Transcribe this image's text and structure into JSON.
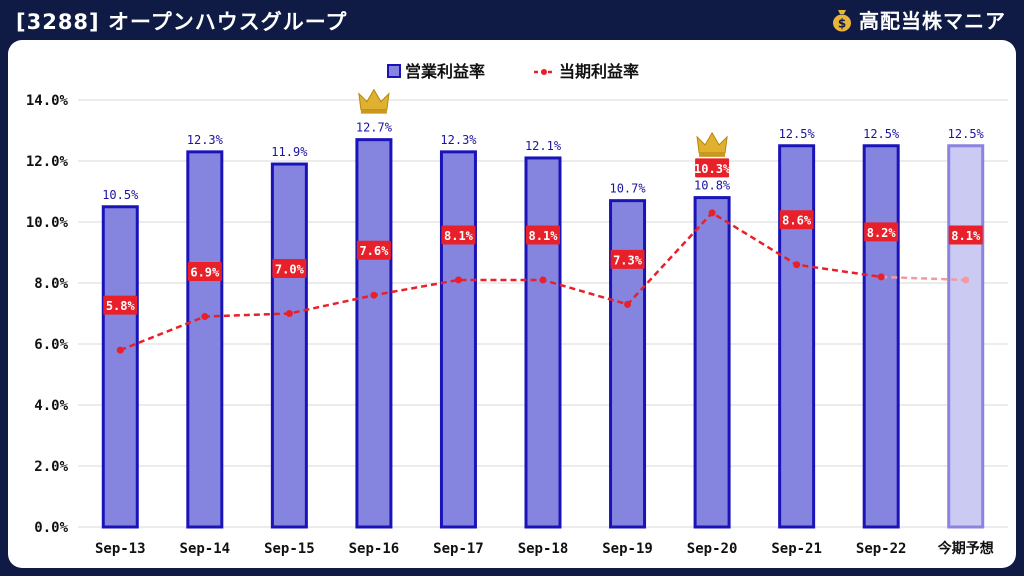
{
  "header": {
    "title": "[3288] オープンハウスグループ",
    "brand": "高配当株マニア",
    "brand_icon": "money-bag-icon"
  },
  "chart_data": {
    "type": "bar",
    "categories": [
      "Sep-13",
      "Sep-14",
      "Sep-15",
      "Sep-16",
      "Sep-17",
      "Sep-18",
      "Sep-19",
      "Sep-20",
      "Sep-21",
      "Sep-22",
      "今期予想"
    ],
    "ylim": [
      0,
      14
    ],
    "yticks": [
      "0.0%",
      "2.0%",
      "4.0%",
      "6.0%",
      "8.0%",
      "10.0%",
      "12.0%",
      "14.0%"
    ],
    "legend_position": "top-center",
    "series": [
      {
        "name": "営業利益率",
        "type": "bar",
        "values": [
          10.5,
          12.3,
          11.9,
          12.7,
          12.3,
          12.1,
          10.7,
          10.8,
          12.5,
          12.5,
          12.5
        ],
        "labels": [
          "10.5%",
          "12.3%",
          "11.9%",
          "12.7%",
          "12.3%",
          "12.1%",
          "10.7%",
          "10.8%",
          "12.5%",
          "12.5%",
          "12.5%"
        ],
        "color": "#8585e0",
        "border_color": "#1a14b8",
        "forecast_color": "#cbcaf3",
        "forecast_border_color": "#8a84e0"
      },
      {
        "name": "当期利益率",
        "type": "line",
        "values": [
          5.8,
          6.9,
          7.0,
          7.6,
          8.1,
          8.1,
          7.3,
          10.3,
          8.6,
          8.2,
          8.1
        ],
        "labels": [
          "5.8%",
          "6.9%",
          "7.0%",
          "7.6%",
          "8.1%",
          "8.1%",
          "7.3%",
          "10.3%",
          "8.6%",
          "8.2%",
          "8.1%"
        ],
        "color": "#e8202a"
      }
    ],
    "crowns": [
      {
        "category_index": 3,
        "series": "営業利益率",
        "icon": "crown-icon"
      },
      {
        "category_index": 7,
        "series": "当期利益率",
        "icon": "crown-icon"
      }
    ],
    "forecast_index": 10
  }
}
